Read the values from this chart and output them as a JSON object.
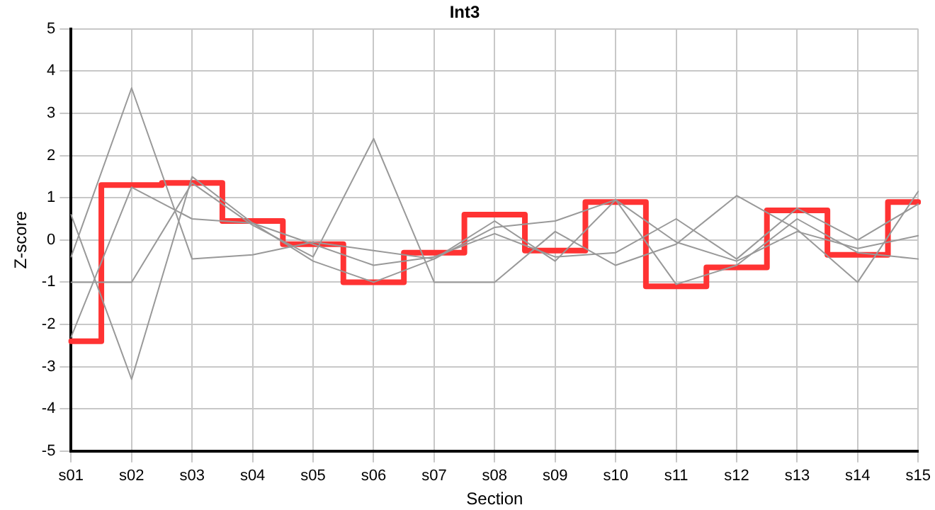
{
  "chart_data": {
    "type": "line",
    "title": "Int3",
    "xlabel": "Section",
    "ylabel": "Z-score",
    "categories": [
      "s01",
      "s02",
      "s03",
      "s04",
      "s05",
      "s06",
      "s07",
      "s08",
      "s09",
      "s10",
      "s11",
      "s12",
      "s13",
      "s14",
      "s15"
    ],
    "series": [
      {
        "color": "#999999",
        "values": [
          -0.4,
          3.6,
          -0.45,
          -0.35,
          -0.05,
          -0.25,
          -0.45,
          0.3,
          0.45,
          0.95,
          -0.05,
          -0.5,
          0.2,
          -0.2,
          0.1
        ]
      },
      {
        "color": "#999999",
        "values": [
          0.6,
          -3.3,
          1.5,
          0.4,
          -0.1,
          -0.6,
          -0.4,
          0.15,
          -0.4,
          -0.3,
          0.5,
          -0.45,
          0.75,
          0.0,
          0.85
        ]
      },
      {
        "color": "#999999",
        "values": [
          -1,
          -1,
          1.35,
          0.35,
          -0.4,
          2.4,
          -1,
          -1,
          0.2,
          -0.6,
          -0.1,
          1.05,
          0.25,
          -1,
          1.15
        ]
      },
      {
        "color": "#999999",
        "values": [
          -2.3,
          1.25,
          0.5,
          0.4,
          -0.5,
          -1,
          -0.45,
          0.45,
          -0.5,
          0.95,
          -1.05,
          -0.6,
          0.5,
          -0.3,
          -0.45
        ]
      },
      {
        "type": "step",
        "color": "#ff3333",
        "values": [
          -2.4,
          1.3,
          1.35,
          0.45,
          -0.1,
          -1.0,
          -0.3,
          0.6,
          -0.25,
          0.9,
          -1.1,
          -0.65,
          0.7,
          -0.35,
          0.9
        ]
      }
    ],
    "ylim": [
      -5,
      5
    ],
    "yticks": [
      -5,
      -4,
      -3,
      -2,
      -1,
      0,
      1,
      2,
      3,
      4,
      5
    ],
    "grid": true,
    "legend": false,
    "marker": "none",
    "line_style": "solid"
  }
}
